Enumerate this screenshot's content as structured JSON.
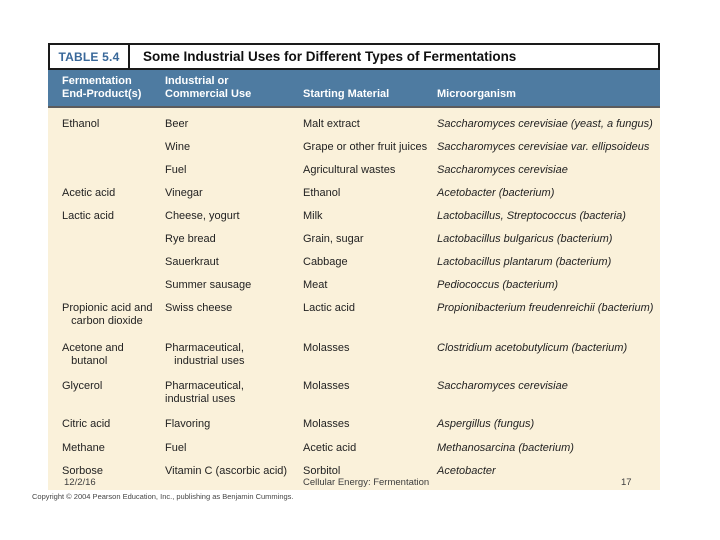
{
  "table": {
    "label": "TABLE 5.4",
    "title": "Some Industrial Uses for Different Types of Fermentations",
    "columns": [
      {
        "name": "end-product",
        "lines": [
          "Fermentation",
          "End-Product(s)"
        ]
      },
      {
        "name": "use",
        "lines": [
          "Industrial or",
          "Commercial Use"
        ]
      },
      {
        "name": "starting-material",
        "lines": [
          "Starting Material"
        ]
      },
      {
        "name": "microorganism",
        "lines": [
          "Microorganism"
        ]
      }
    ],
    "rows": [
      [
        [
          "Ethanol"
        ],
        [
          "Beer"
        ],
        [
          "Malt extract"
        ],
        [
          "Saccharomyces cerevisiae (yeast, a fungus)"
        ]
      ],
      [
        [],
        [
          "Wine"
        ],
        [
          "Grape or other fruit juices"
        ],
        [
          "Saccharomyces cerevisiae var. ellipsoideus"
        ]
      ],
      [
        [],
        [
          "Fuel"
        ],
        [
          "Agricultural wastes"
        ],
        [
          "Saccharomyces cerevisiae"
        ]
      ],
      [
        [
          "Acetic acid"
        ],
        [
          "Vinegar"
        ],
        [
          "Ethanol"
        ],
        [
          "Acetobacter (bacterium)"
        ]
      ],
      [
        [
          "Lactic acid"
        ],
        [
          "Cheese, yogurt"
        ],
        [
          "Milk"
        ],
        [
          "Lactobacillus, Streptococcus (bacteria)"
        ]
      ],
      [
        [],
        [
          "Rye bread"
        ],
        [
          "Grain, sugar"
        ],
        [
          "Lactobacillus bulgaricus (bacterium)"
        ]
      ],
      [
        [],
        [
          "Sauerkraut"
        ],
        [
          "Cabbage"
        ],
        [
          "Lactobacillus plantarum (bacterium)"
        ]
      ],
      [
        [],
        [
          "Summer sausage"
        ],
        [
          "Meat"
        ],
        [
          "Pediococcus (bacterium)"
        ]
      ],
      [
        [
          "Propionic acid and",
          "   carbon dioxide"
        ],
        [
          "Swiss cheese"
        ],
        [
          "Lactic acid"
        ],
        [
          "Propionibacterium freudenreichii (bacterium)"
        ]
      ],
      [
        [
          "Acetone and",
          "   butanol"
        ],
        [
          "Pharmaceutical,",
          "   industrial uses"
        ],
        [
          "Molasses"
        ],
        [
          "Clostridium acetobutylicum (bacterium)"
        ]
      ],
      [
        [
          "Glycerol"
        ],
        [
          "Pharmaceutical,",
          "industrial uses"
        ],
        [
          "Molasses"
        ],
        [
          "Saccharomyces cerevisiae"
        ]
      ],
      [
        [
          "Citric acid"
        ],
        [
          "Flavoring"
        ],
        [
          "Molasses"
        ],
        [
          "Aspergillus (fungus)"
        ]
      ],
      [
        [
          "Methane"
        ],
        [
          "Fuel"
        ],
        [
          "Acetic acid"
        ],
        [
          "Methanosarcina (bacterium)"
        ]
      ],
      [
        [
          "Sorbose"
        ],
        [
          "Vitamin C (ascorbic acid)"
        ],
        [
          "Sorbitol"
        ],
        [
          "Acetobacter"
        ]
      ]
    ]
  },
  "footer": {
    "date": "12/2/16",
    "center": "Cellular Energy: Fermentation",
    "page": "17",
    "copyright": "Copyright © 2004 Pearson Education, Inc., publishing as Benjamin Cummings."
  },
  "colors": {
    "header_band": "#4E7BA1",
    "table_label_blue": "#39689A",
    "body_background": "#FAF1DA",
    "border_dark": "#1A1A1A"
  }
}
